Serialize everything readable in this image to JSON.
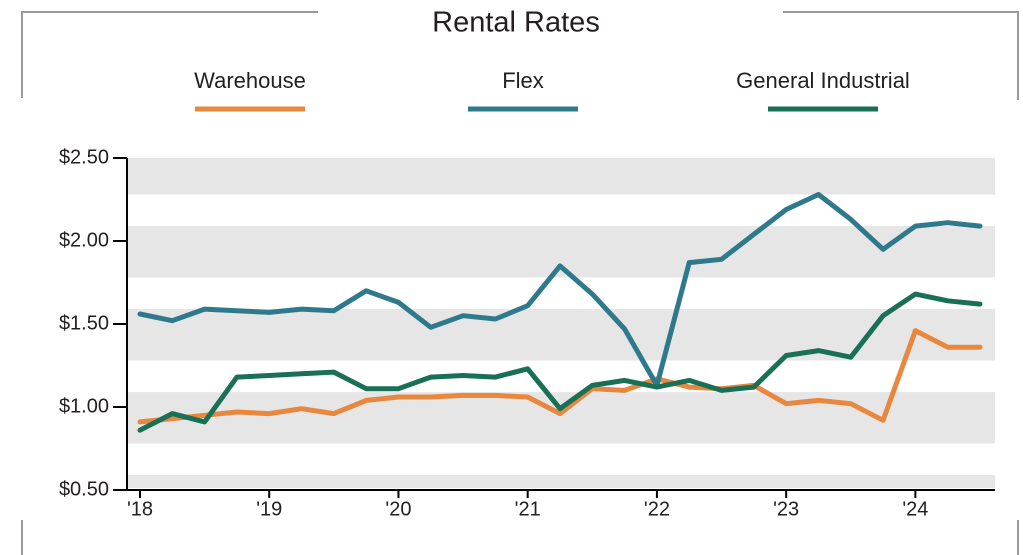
{
  "chart_data": {
    "type": "line",
    "title": "Rental Rates",
    "categories": [
      "'18",
      null,
      null,
      null,
      "'19",
      null,
      null,
      null,
      "'20",
      null,
      null,
      null,
      "'21",
      null,
      null,
      null,
      "'22",
      null,
      null,
      null,
      "'23",
      null,
      null,
      null,
      "'24",
      null,
      null
    ],
    "series": [
      {
        "name": "Warehouse",
        "color": "#e8873e",
        "values": [
          0.91,
          0.93,
          0.95,
          0.97,
          0.96,
          0.99,
          0.96,
          1.04,
          1.06,
          1.06,
          1.07,
          1.07,
          1.06,
          0.96,
          1.11,
          1.1,
          1.17,
          1.12,
          1.11,
          1.13,
          1.02,
          1.04,
          1.02,
          0.92,
          1.46,
          1.36,
          1.36
        ]
      },
      {
        "name": "Flex",
        "color": "#2e7a8c",
        "values": [
          1.56,
          1.52,
          1.59,
          1.58,
          1.57,
          1.59,
          1.58,
          1.7,
          1.63,
          1.48,
          1.55,
          1.53,
          1.61,
          1.85,
          1.68,
          1.47,
          1.13,
          1.87,
          1.89,
          2.04,
          2.19,
          2.28,
          2.13,
          1.95,
          2.09,
          2.11,
          2.09
        ]
      },
      {
        "name": "General Industrial",
        "color": "#1a7057",
        "values": [
          0.86,
          0.96,
          0.91,
          1.18,
          1.19,
          1.2,
          1.21,
          1.11,
          1.11,
          1.18,
          1.19,
          1.18,
          1.23,
          0.99,
          1.13,
          1.16,
          1.12,
          1.16,
          1.1,
          1.12,
          1.31,
          1.34,
          1.3,
          1.55,
          1.68,
          1.64,
          1.62
        ]
      }
    ],
    "ylim": [
      0.5,
      2.5
    ],
    "yticks": [
      {
        "value": 0.5,
        "label": "$0.50"
      },
      {
        "value": 1.0,
        "label": "$1.00"
      },
      {
        "value": 1.5,
        "label": "$1.50"
      },
      {
        "value": 2.0,
        "label": "$2.00"
      },
      {
        "value": 2.5,
        "label": "$2.50"
      }
    ],
    "grid": true
  }
}
